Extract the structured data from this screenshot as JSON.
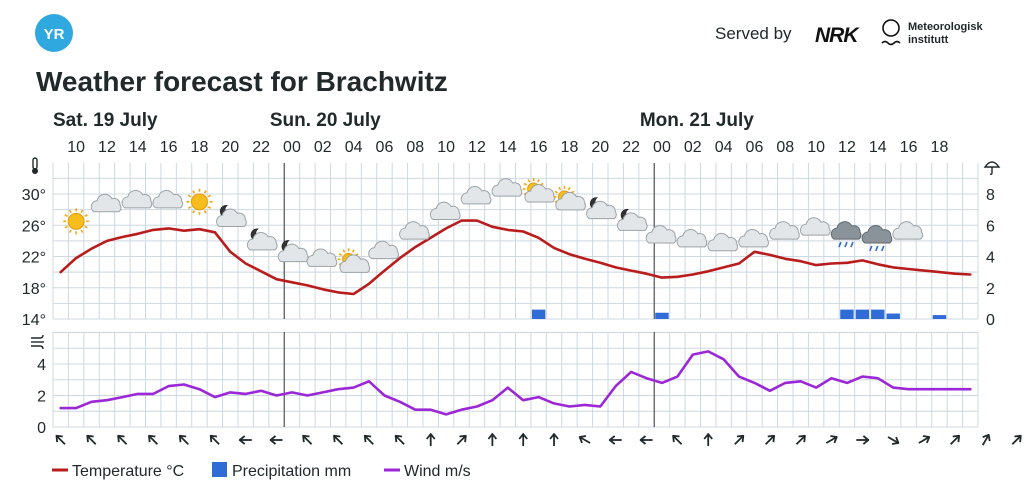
{
  "header": {
    "logo_text": "YR",
    "served_by": "Served by",
    "nrk_logo_text": "NRK",
    "met_name_line1": "Meteorologisk",
    "met_name_line2": "institutt"
  },
  "page_title": "Weather forecast for Brachwitz",
  "colors": {
    "temperature": "#b81c1c",
    "precipitation": "#2f6cd6",
    "wind": "#9b27d6",
    "grid": "#cdd8e0",
    "logo": "#2fa8e0"
  },
  "chart_data": {
    "type": "line",
    "title": "Weather forecast for Brachwitz",
    "days": [
      {
        "label": "Sat. 19 July",
        "start_index": 0
      },
      {
        "label": "Sun. 20 July",
        "start_index": 14
      },
      {
        "label": "Mon. 21 July",
        "start_index": 38
      }
    ],
    "hour_labels": [
      "10",
      "12",
      "14",
      "16",
      "18",
      "20",
      "22",
      "00",
      "02",
      "04",
      "06",
      "08",
      "10",
      "12",
      "14",
      "16",
      "18",
      "20",
      "22",
      "00",
      "02",
      "04",
      "06",
      "08",
      "10",
      "12",
      "14",
      "16",
      "18"
    ],
    "x_hours": [
      9,
      10,
      11,
      12,
      13,
      14,
      15,
      16,
      17,
      18,
      19,
      20,
      21,
      22,
      23,
      24,
      25,
      26,
      27,
      28,
      29,
      30,
      31,
      32,
      33,
      34,
      35,
      36,
      37,
      38,
      39,
      40,
      41,
      42,
      43,
      44,
      45,
      46,
      47,
      48,
      49,
      50,
      51,
      52,
      53,
      54,
      55,
      56,
      57,
      58,
      59,
      60,
      61,
      62,
      63,
      64,
      65,
      66,
      67
    ],
    "temperature": {
      "name": "Temperature °C",
      "unit": "°C",
      "ylim": [
        14,
        32
      ],
      "yticks": [
        "14°",
        "18°",
        "22°",
        "26°",
        "30°"
      ],
      "x": [
        9,
        10,
        11,
        12,
        13,
        14,
        15,
        16,
        17,
        18,
        19,
        20,
        21,
        22,
        23,
        24,
        25,
        26,
        27,
        28,
        29,
        30,
        31,
        32,
        33,
        34,
        35,
        36,
        37,
        38,
        39,
        40,
        41,
        42,
        43,
        44,
        45,
        46,
        47,
        48,
        49,
        50,
        51,
        52,
        53,
        54,
        55,
        56,
        57,
        58,
        59,
        60,
        61,
        62,
        63,
        64,
        65,
        66,
        67,
        68
      ],
      "values": [
        20,
        21.8,
        23,
        24,
        24.5,
        24.9,
        25.4,
        25.6,
        25.3,
        25.5,
        25.1,
        22.6,
        21.1,
        20.1,
        19.1,
        18.7,
        18.3,
        17.8,
        17.4,
        17.2,
        18.5,
        20.2,
        21.8,
        23.2,
        24.4,
        25.6,
        26.6,
        26.6,
        25.8,
        25.4,
        25.2,
        24.4,
        23.1,
        22.3,
        21.7,
        21.2,
        20.6,
        20.2,
        19.8,
        19.3,
        19.4,
        19.7,
        20.1,
        20.6,
        21.1,
        22.6,
        22.2,
        21.7,
        21.4,
        20.9,
        21.1,
        21.2,
        21.5,
        21.0,
        20.6,
        20.4,
        20.2,
        20.0,
        19.8,
        19.7
      ]
    },
    "precipitation": {
      "name": "Precipitation mm",
      "unit": "mm",
      "ylim": [
        0,
        9
      ],
      "yticks": [
        "0",
        "2",
        "4",
        "6",
        "8"
      ],
      "bars": [
        {
          "hour": 40,
          "value": 0.6
        },
        {
          "hour": 48,
          "value": 0.4
        },
        {
          "hour": 60,
          "value": 0.6
        },
        {
          "hour": 61,
          "value": 0.6
        },
        {
          "hour": 62,
          "value": 0.6
        },
        {
          "hour": 63,
          "value": 0.35
        },
        {
          "hour": 66,
          "value": 0.25
        }
      ]
    },
    "wind": {
      "name": "Wind m/s",
      "unit": "m/s",
      "ylim": [
        0,
        6
      ],
      "yticks": [
        "0",
        "2",
        "4"
      ],
      "x": [
        9,
        10,
        11,
        12,
        13,
        14,
        15,
        16,
        17,
        18,
        19,
        20,
        21,
        22,
        23,
        24,
        25,
        26,
        27,
        28,
        29,
        30,
        31,
        32,
        33,
        34,
        35,
        36,
        37,
        38,
        39,
        40,
        41,
        42,
        43,
        44,
        45,
        46,
        47,
        48,
        49,
        50,
        51,
        52,
        53,
        54,
        55,
        56,
        57,
        58,
        59,
        60,
        61,
        62,
        63,
        64,
        65,
        66,
        67,
        68
      ],
      "values": [
        1.2,
        1.2,
        1.6,
        1.7,
        1.9,
        2.1,
        2.1,
        2.6,
        2.7,
        2.4,
        1.9,
        2.2,
        2.1,
        2.3,
        2.0,
        2.2,
        2.0,
        2.2,
        2.4,
        2.5,
        2.9,
        2.0,
        1.6,
        1.1,
        1.1,
        0.8,
        1.1,
        1.3,
        1.7,
        2.5,
        1.7,
        1.9,
        1.5,
        1.3,
        1.4,
        1.3,
        2.6,
        3.5,
        3.1,
        2.8,
        3.2,
        4.6,
        4.8,
        4.3,
        3.2,
        2.8,
        2.3,
        2.8,
        2.9,
        2.5,
        3.1,
        2.8,
        3.2,
        3.1,
        2.5,
        2.4,
        2.4,
        2.4,
        2.4,
        2.4
      ]
    },
    "wind_arrow_angles": [
      315,
      315,
      315,
      315,
      315,
      315,
      270,
      270,
      315,
      315,
      315,
      315,
      0,
      45,
      0,
      0,
      0,
      300,
      270,
      270,
      315,
      0,
      45,
      45,
      45,
      60,
      90,
      120,
      60,
      45,
      30,
      45
    ],
    "weather_icons": [
      {
        "hour": 10,
        "icon": "sun-icon",
        "level": 26.5
      },
      {
        "hour": 12,
        "icon": "cloud-icon",
        "level": 28.5
      },
      {
        "hour": 14,
        "icon": "cloud-icon",
        "level": 29
      },
      {
        "hour": 16,
        "icon": "cloud-icon",
        "level": 29
      },
      {
        "hour": 18,
        "icon": "sun-icon",
        "level": 29
      },
      {
        "hour": 20,
        "icon": "moon-cloud-icon",
        "level": 27
      },
      {
        "hour": 22,
        "icon": "moon-cloud-icon",
        "level": 24
      },
      {
        "hour": 24,
        "icon": "moon-cloud-icon",
        "level": 22.5
      },
      {
        "hour": 26,
        "icon": "cloud-icon",
        "level": 21.5
      },
      {
        "hour": 28,
        "icon": "sun-cloud-icon",
        "level": 21
      },
      {
        "hour": 30,
        "icon": "cloud-icon",
        "level": 22.5
      },
      {
        "hour": 32,
        "icon": "cloud-icon",
        "level": 25
      },
      {
        "hour": 34,
        "icon": "cloud-icon",
        "level": 27.5
      },
      {
        "hour": 36,
        "icon": "cloud-icon",
        "level": 29.5
      },
      {
        "hour": 38,
        "icon": "cloud-icon",
        "level": 30.5
      },
      {
        "hour": 40,
        "icon": "sun-cloud-icon",
        "level": 30
      },
      {
        "hour": 42,
        "icon": "sun-cloud-icon",
        "level": 29
      },
      {
        "hour": 44,
        "icon": "moon-cloud-icon",
        "level": 28
      },
      {
        "hour": 46,
        "icon": "moon-cloud-icon",
        "level": 26.5
      },
      {
        "hour": 48,
        "icon": "cloud-icon",
        "level": 24.5
      },
      {
        "hour": 50,
        "icon": "cloud-icon",
        "level": 24
      },
      {
        "hour": 52,
        "icon": "cloud-icon",
        "level": 23.5
      },
      {
        "hour": 54,
        "icon": "cloud-icon",
        "level": 24
      },
      {
        "hour": 56,
        "icon": "cloud-icon",
        "level": 25
      },
      {
        "hour": 58,
        "icon": "cloud-icon",
        "level": 25.5
      },
      {
        "hour": 60,
        "icon": "rain-cloud-icon",
        "level": 25
      },
      {
        "hour": 62,
        "icon": "rain-cloud-icon",
        "level": 24.5
      },
      {
        "hour": 64,
        "icon": "cloud-icon",
        "level": 25
      }
    ],
    "legend": [
      "Temperature °C",
      "Precipitation mm",
      "Wind m/s"
    ],
    "legend_placement": "bottom",
    "grid": true
  }
}
